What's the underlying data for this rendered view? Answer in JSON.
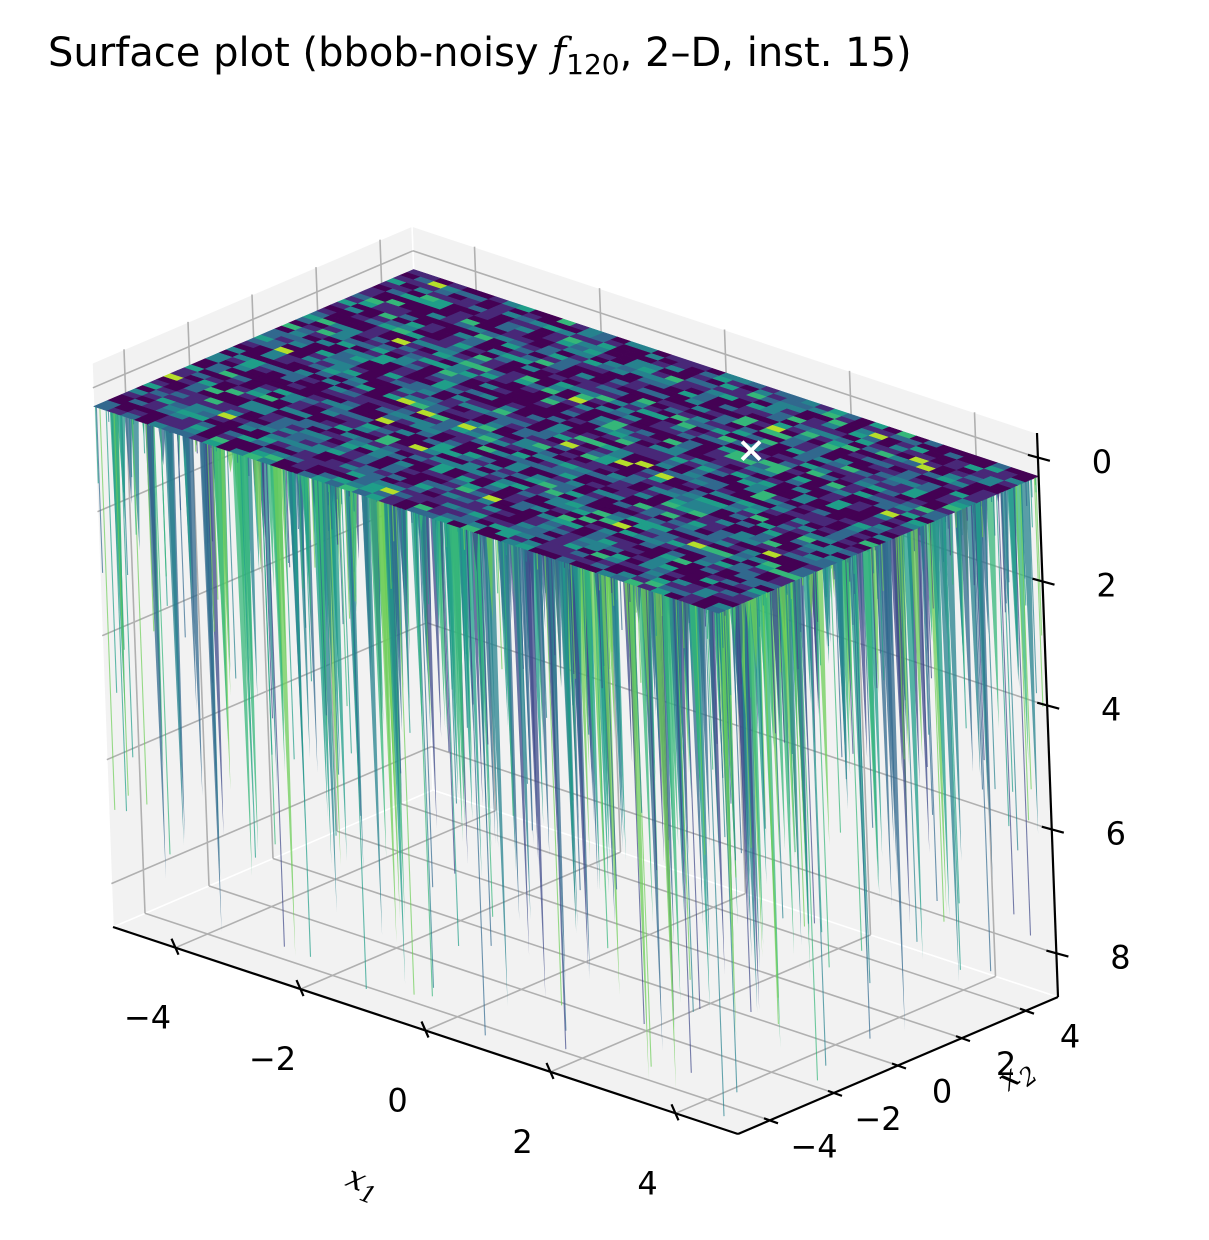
{
  "chart_data": {
    "type": "surface",
    "title": "Surface plot (bbob-noisy f120, 2–D, inst. 15)",
    "title_parts": {
      "prefix": "Surface plot (bbob-noisy ",
      "func_symbol": "f",
      "func_subscript": "120",
      "suffix": ", 2–D, inst. 15)"
    },
    "xlabel": "x1",
    "ylabel": "x2",
    "xlabel_parts": {
      "base": "x",
      "sub": "1"
    },
    "ylabel_parts": {
      "base": "x",
      "sub": "2"
    },
    "zlabel": "",
    "xlim": [
      -5,
      5
    ],
    "ylim": [
      -5,
      5
    ],
    "zlim": [
      -0.4,
      8.7
    ],
    "z_axis_inverted": true,
    "x_ticks": [
      -4,
      -2,
      0,
      2,
      4
    ],
    "y_ticks": [
      -4,
      -2,
      0,
      2,
      4
    ],
    "z_ticks": [
      0,
      2,
      4,
      6,
      8
    ],
    "x_tick_labels": [
      "−4",
      "−2",
      "0",
      "2",
      "4"
    ],
    "y_tick_labels": [
      "−4",
      "−2",
      "0",
      "2",
      "4"
    ],
    "z_tick_labels": [
      "0",
      "2",
      "4",
      "6",
      "8"
    ],
    "surface": {
      "colormap": "viridis",
      "plateau_value": 0.3,
      "spike_max": 8.5,
      "description_of_shape": "flat noisy plateau near the top with dense downward spikes"
    },
    "optimum_marker": {
      "x": 1.2,
      "y": 3.4,
      "z": 0.8,
      "marker": "x",
      "color": "#ffffff"
    },
    "grid": true,
    "pane_color": "#f2f2f2",
    "colors": {
      "viridis": [
        "#440154",
        "#482878",
        "#3e4989",
        "#31688e",
        "#26828e",
        "#1f9e89",
        "#35b779",
        "#6ece58",
        "#b5de2b",
        "#fde725"
      ]
    }
  }
}
